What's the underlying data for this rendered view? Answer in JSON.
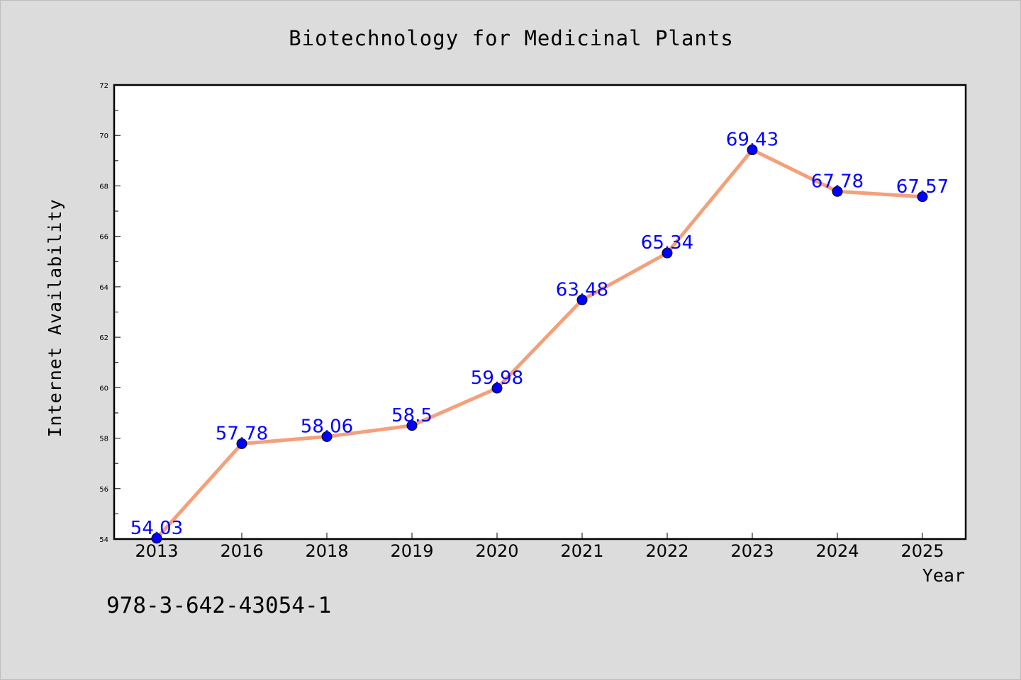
{
  "chart_data": {
    "type": "line",
    "title": "Biotechnology for Medicinal Plants",
    "xlabel": "Year",
    "ylabel": "Internet Availability",
    "categories": [
      "2013",
      "2016",
      "2018",
      "2019",
      "2020",
      "2021",
      "2022",
      "2023",
      "2024",
      "2025"
    ],
    "series": [
      {
        "values": [
          54.03,
          57.78,
          58.06,
          58.5,
          59.98,
          63.48,
          65.34,
          69.43,
          67.78,
          67.57
        ],
        "data_labels": [
          "54.03",
          "57.78",
          "58.06",
          "58.5",
          "59.98",
          "63.48",
          "65.34",
          "69.43",
          "67.78",
          "67.57"
        ],
        "line_color": "#f4a07a",
        "marker_color": "#0000ff"
      }
    ],
    "ylim": [
      54,
      72
    ],
    "y_ticks": [
      "54",
      "56",
      "58",
      "60",
      "62",
      "64",
      "66",
      "68",
      "70",
      "72"
    ],
    "grid": false,
    "legend": "none",
    "label_color": "#0000ff"
  },
  "footer": {
    "isbn": "978-3-642-43054-1"
  }
}
